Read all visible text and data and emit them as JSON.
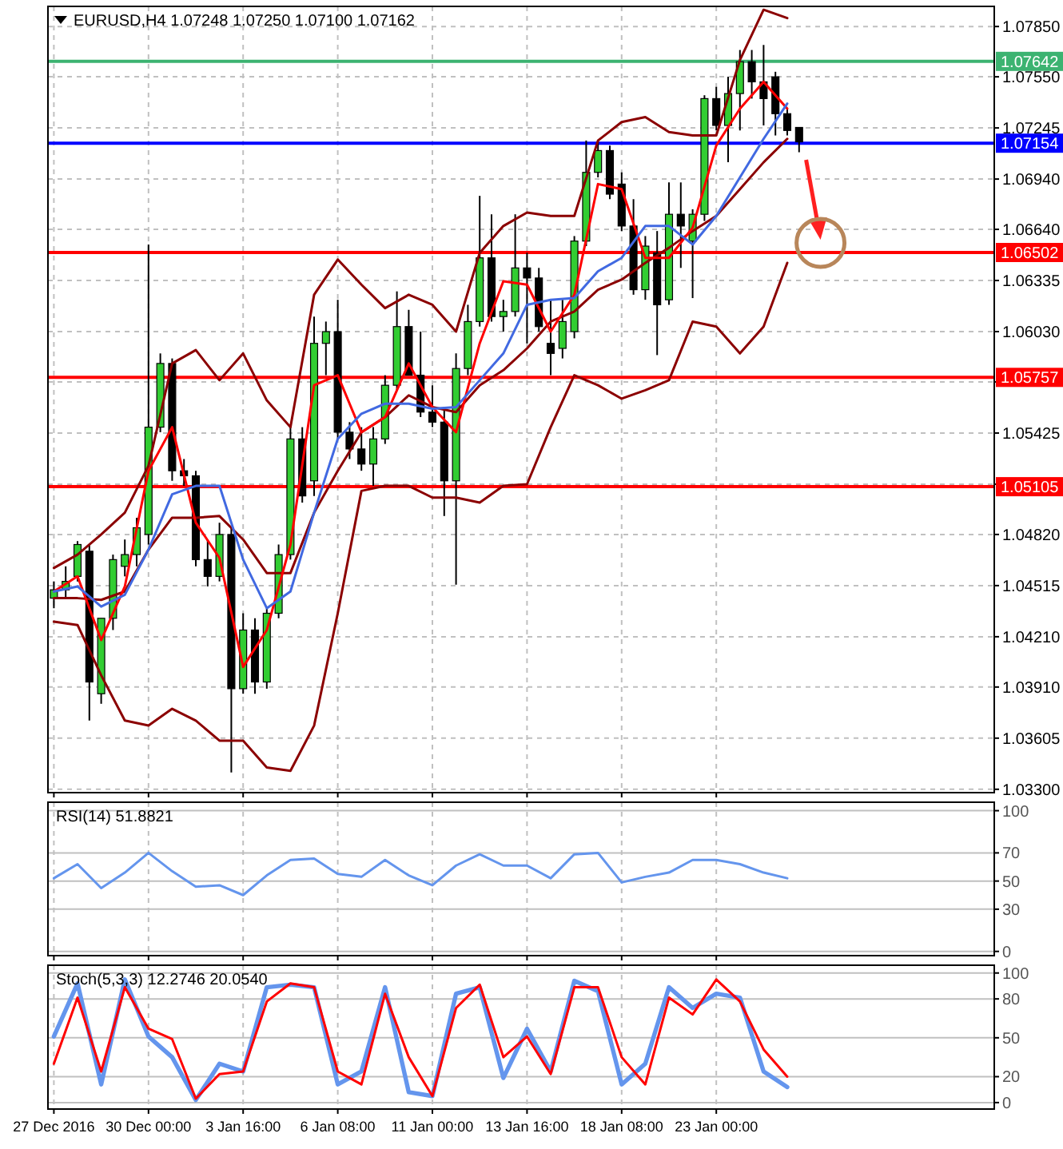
{
  "chart_data": [
    {
      "type": "candlestick",
      "title": "EURUSD,H4 1.07248 1.07250 1.07100 1.07162",
      "categories": [
        null,
        null,
        null,
        null,
        null,
        null,
        null,
        null,
        null,
        null,
        null,
        null,
        null,
        null,
        null,
        null,
        null,
        null,
        null,
        null,
        null,
        null,
        null,
        null,
        null,
        null,
        null,
        null,
        null,
        null,
        null,
        null,
        null,
        null,
        null,
        null,
        null,
        null,
        null,
        null,
        null,
        null,
        null,
        null,
        null,
        null,
        null,
        null,
        null,
        null,
        null,
        null,
        null,
        null,
        null,
        null,
        null,
        null,
        null,
        null,
        null,
        null,
        null,
        null,
        null,
        null,
        null,
        null,
        null,
        null,
        null,
        null,
        null,
        null,
        null,
        null,
        null,
        null,
        null,
        null
      ],
      "ohlc": [
        [
          1.0444,
          1.0454,
          1.0438,
          1.0449
        ],
        [
          1.0449,
          1.0463,
          1.0444,
          1.0454
        ],
        [
          1.0457,
          1.0478,
          1.0454,
          1.0476
        ],
        [
          1.0472,
          1.0476,
          1.0371,
          1.0394
        ],
        [
          1.0387,
          1.0432,
          1.0381,
          1.0432
        ],
        [
          1.0432,
          1.047,
          1.0425,
          1.0467
        ],
        [
          1.0463,
          1.0479,
          1.0457,
          1.047
        ],
        [
          1.047,
          1.0492,
          1.0463,
          1.0486
        ],
        [
          1.0482,
          1.0655,
          1.0476,
          1.0546
        ],
        [
          1.0546,
          1.059,
          1.0543,
          1.0584
        ],
        [
          1.0584,
          1.0587,
          1.0514,
          1.052
        ],
        [
          1.052,
          1.0527,
          1.0511,
          1.0517
        ],
        [
          1.0517,
          1.052,
          1.0463,
          1.0467
        ],
        [
          1.0467,
          1.0479,
          1.0451,
          1.0457
        ],
        [
          1.0457,
          1.0489,
          1.0454,
          1.0482
        ],
        [
          1.0482,
          1.0486,
          1.034,
          1.039
        ],
        [
          1.039,
          1.0435,
          1.0387,
          1.0425
        ],
        [
          1.0425,
          1.0432,
          1.0387,
          1.0394
        ],
        [
          1.0394,
          1.0438,
          1.039,
          1.0435
        ],
        [
          1.0435,
          1.0476,
          1.0432,
          1.047
        ],
        [
          1.047,
          1.0546,
          1.0467,
          1.0539
        ],
        [
          1.0539,
          1.0546,
          1.0501,
          1.0505
        ],
        [
          1.0514,
          1.0612,
          1.0505,
          1.0596
        ],
        [
          1.0596,
          1.0609,
          1.0577,
          1.0603
        ],
        [
          1.0603,
          1.0622,
          1.0539,
          1.0543
        ],
        [
          1.0543,
          1.0549,
          1.0527,
          1.0533
        ],
        [
          1.0533,
          1.0546,
          1.052,
          1.0524
        ],
        [
          1.0524,
          1.0546,
          1.0511,
          1.0539
        ],
        [
          1.0539,
          1.0577,
          1.0536,
          1.0571
        ],
        [
          1.0571,
          1.0627,
          1.0568,
          1.0606
        ],
        [
          1.0606,
          1.0616,
          1.0577,
          1.0577
        ],
        [
          1.0577,
          1.0603,
          1.0552,
          1.0555
        ],
        [
          1.0555,
          1.0571,
          1.0546,
          1.0549
        ],
        [
          1.0549,
          1.0558,
          1.0493,
          1.0514
        ],
        [
          1.0514,
          1.059,
          1.0452,
          1.0581
        ],
        [
          1.0581,
          1.0619,
          1.0577,
          1.0609
        ],
        [
          1.0609,
          1.0684,
          1.0606,
          1.0647
        ],
        [
          1.0647,
          1.0673,
          1.0609,
          1.0612
        ],
        [
          1.0612,
          1.0622,
          1.0603,
          1.0615
        ],
        [
          1.0615,
          1.0673,
          1.0612,
          1.0641
        ],
        [
          1.0641,
          1.065,
          1.0596,
          1.0635
        ],
        [
          1.0635,
          1.0641,
          1.0603,
          1.0606
        ],
        [
          1.0596,
          1.0622,
          1.0577,
          1.059
        ],
        [
          1.0593,
          1.0622,
          1.0587,
          1.0609
        ],
        [
          1.0603,
          1.066,
          1.0599,
          1.0657
        ],
        [
          1.0657,
          1.0717,
          1.0654,
          1.0698
        ],
        [
          1.0698,
          1.0717,
          1.0695,
          1.0711
        ],
        [
          1.0711,
          1.0714,
          1.0682,
          1.0685
        ],
        [
          1.0691,
          1.0698,
          1.0663,
          1.0666
        ],
        [
          1.0666,
          1.0682,
          1.0625,
          1.0628
        ],
        [
          1.0628,
          1.066,
          1.0622,
          1.0654
        ],
        [
          1.065,
          1.0663,
          1.0589,
          1.0619
        ],
        [
          1.0622,
          1.0692,
          1.0619,
          1.0673
        ],
        [
          1.0673,
          1.0692,
          1.0641,
          1.0666
        ],
        [
          1.0657,
          1.0676,
          1.0623,
          1.0673
        ],
        [
          1.0673,
          1.0744,
          1.0669,
          1.0742
        ],
        [
          1.0742,
          1.0749,
          1.0723,
          1.0726
        ],
        [
          1.0726,
          1.0755,
          1.0704,
          1.0745
        ],
        [
          1.0745,
          1.0771,
          1.0723,
          1.0764
        ],
        [
          1.0764,
          1.0771,
          1.0742,
          1.0752
        ],
        [
          1.0752,
          1.0774,
          1.0726,
          1.0742
        ],
        [
          1.0755,
          1.0758,
          1.072,
          1.0733
        ],
        [
          1.0733,
          1.0736,
          1.072,
          1.0723
        ],
        [
          1.07248,
          1.0725,
          1.071,
          1.07162
        ],
        null,
        null,
        null,
        null,
        null,
        null,
        null,
        null,
        null,
        null,
        null,
        null,
        null,
        null,
        null,
        null
      ],
      "series": [
        {
          "type": "line",
          "color": "#8b0000",
          "values": [
            1.0462,
            null,
            1.047,
            null,
            1.0482,
            null,
            1.0495,
            null,
            1.0523,
            null,
            1.0584,
            null,
            1.0592,
            null,
            1.0574,
            null,
            1.059,
            null,
            1.0562,
            null,
            1.0546,
            null,
            1.0625,
            null,
            1.0646,
            null,
            1.0631,
            null,
            1.0617,
            null,
            1.0625,
            null,
            1.0619,
            null,
            1.0603,
            null,
            1.065,
            null,
            1.0666,
            null,
            1.0674,
            null,
            1.0672,
            null,
            1.0672,
            null,
            1.0717,
            null,
            1.0728,
            null,
            1.0731,
            null,
            1.0722,
            null,
            1.072,
            null,
            1.072,
            null,
            1.0765,
            null,
            1.0795,
            null,
            1.079,
            null,
            null,
            null,
            null,
            null,
            null,
            null,
            null,
            null,
            null,
            null,
            null,
            null,
            null,
            null,
            null,
            null
          ]
        },
        {
          "type": "line",
          "color": "#8b0000",
          "values": [
            1.0444,
            null,
            1.0444,
            null,
            1.0443,
            null,
            1.0448,
            null,
            1.0473,
            null,
            1.0492,
            null,
            1.0492,
            null,
            1.0493,
            null,
            1.0479,
            null,
            1.0459,
            null,
            1.0459,
            null,
            1.0495,
            null,
            1.052,
            null,
            1.0543,
            null,
            1.0552,
            null,
            1.0565,
            null,
            1.0558,
            null,
            1.0555,
            null,
            1.0571,
            null,
            1.058,
            null,
            1.0593,
            null,
            1.0609,
            null,
            1.0615,
            null,
            1.0628,
            null,
            1.0634,
            null,
            1.0644,
            null,
            1.0653,
            null,
            1.0663,
            null,
            1.0672,
            null,
            1.0688,
            null,
            1.0704,
            null,
            1.0718,
            null,
            null,
            null,
            null,
            null,
            null,
            null,
            null,
            null,
            null,
            null,
            null,
            null,
            null,
            null,
            null,
            null
          ]
        },
        {
          "type": "line",
          "color": "#8b0000",
          "values": [
            1.043,
            null,
            1.0428,
            null,
            1.0398,
            null,
            1.0371,
            null,
            1.0368,
            null,
            1.0378,
            null,
            1.0371,
            null,
            1.0359,
            null,
            1.0359,
            null,
            1.0343,
            null,
            1.0341,
            null,
            1.0368,
            null,
            1.0435,
            null,
            1.0508,
            null,
            1.0511,
            null,
            1.0511,
            null,
            1.0504,
            null,
            1.0504,
            null,
            1.0501,
            null,
            1.0511,
            null,
            1.0512,
            null,
            1.0546,
            null,
            1.0577,
            null,
            1.0571,
            null,
            1.0563,
            null,
            1.0568,
            null,
            1.0574,
            null,
            1.0609,
            null,
            1.0606,
            null,
            1.059,
            null,
            1.0606,
            null,
            1.0644,
            null,
            null,
            null,
            null,
            null,
            null,
            null,
            null,
            null,
            null,
            null,
            null,
            null,
            null,
            null,
            null,
            null
          ]
        },
        {
          "type": "line",
          "color": "#ff0000",
          "values": [
            1.0448,
            null,
            1.0457,
            null,
            1.0419,
            null,
            1.0451,
            null,
            1.052,
            null,
            1.0546,
            null,
            1.0489,
            null,
            1.0468,
            null,
            1.0403,
            null,
            1.0425,
            null,
            1.0476,
            null,
            1.0571,
            null,
            1.0577,
            null,
            1.0543,
            null,
            1.0552,
            null,
            1.0584,
            null,
            1.0558,
            null,
            1.0543,
            null,
            1.0596,
            null,
            1.0633,
            null,
            1.0631,
            null,
            1.0603,
            null,
            1.0625,
            null,
            1.0691,
            null,
            1.0688,
            null,
            1.0647,
            null,
            1.0647,
            null,
            1.0665,
            null,
            1.0714,
            null,
            1.0736,
            null,
            1.0752,
            null,
            1.0736,
            null,
            null,
            null,
            null,
            null,
            null,
            null,
            null,
            null,
            null,
            null,
            null,
            null,
            null,
            null,
            null,
            null
          ]
        },
        {
          "type": "line",
          "color": "#4169e1",
          "values": [
            1.0448,
            null,
            1.0451,
            null,
            1.0439,
            null,
            1.0446,
            null,
            1.0473,
            null,
            1.0506,
            null,
            1.0511,
            null,
            1.0511,
            null,
            1.0467,
            null,
            1.0438,
            null,
            1.0448,
            null,
            1.0495,
            null,
            1.0539,
            null,
            1.0554,
            null,
            1.056,
            null,
            1.056,
            null,
            1.0557,
            null,
            1.0558,
            null,
            1.0574,
            null,
            1.059,
            null,
            1.0619,
            null,
            1.0622,
            null,
            1.0623,
            null,
            1.0639,
            null,
            1.0647,
            null,
            1.0666,
            null,
            1.0666,
            null,
            1.0655,
            null,
            1.0672,
            null,
            1.0695,
            null,
            1.0718,
            null,
            1.0739,
            null,
            null,
            null,
            null,
            null,
            null,
            null,
            null,
            null,
            null,
            null,
            null,
            null,
            null,
            null,
            null,
            null
          ]
        }
      ],
      "ylim": [
        1.0328,
        1.0797
      ],
      "yticks": [
        {
          "value": 1.033,
          "label": "1.03300"
        },
        {
          "value": 1.03605,
          "label": "1.03605"
        },
        {
          "value": 1.0391,
          "label": "1.03910"
        },
        {
          "value": 1.0421,
          "label": "1.04210"
        },
        {
          "value": 1.04515,
          "label": "1.04515"
        },
        {
          "value": 1.0482,
          "label": "1.04820"
        },
        {
          "value": 1.0512,
          "label": null
        },
        {
          "value": 1.05425,
          "label": "1.05425"
        },
        {
          "value": 1.0573,
          "label": null
        },
        {
          "value": 1.0603,
          "label": "1.06030"
        },
        {
          "value": 1.06335,
          "label": "1.06335"
        },
        {
          "value": 1.0664,
          "label": "1.06640"
        },
        {
          "value": 1.0694,
          "label": "1.06940"
        },
        {
          "value": 1.07245,
          "label": "1.07245"
        },
        {
          "value": 1.0755,
          "label": "1.07550"
        },
        {
          "value": 1.0785,
          "label": "1.07850"
        }
      ],
      "grid": true,
      "tick_labels": "y",
      "ref_lines": [
        {
          "axis": "y",
          "value": 1.07642,
          "label": "1.07642",
          "color": "#3cb371"
        },
        {
          "axis": "y",
          "value": 1.07154,
          "label": "1.07154",
          "color": "#0000ff"
        },
        {
          "axis": "y",
          "value": 1.06502,
          "label": "1.06502",
          "color": "#ff0000"
        },
        {
          "axis": "y",
          "value": 1.05757,
          "label": "1.05757",
          "color": "#ff0000"
        },
        {
          "axis": "y",
          "value": 1.05105,
          "label": "1.05105",
          "color": "#ff0000"
        }
      ]
    },
    {
      "type": "line",
      "title": "RSI(14) 51.8821",
      "categories": [
        null,
        null,
        null,
        null,
        null,
        null,
        null,
        null,
        null,
        null,
        null,
        null,
        null,
        null,
        null,
        null,
        null,
        null,
        null,
        null,
        null,
        null,
        null,
        null,
        null,
        null,
        null,
        null,
        null,
        null,
        null,
        null,
        null,
        null,
        null,
        null,
        null,
        null,
        null,
        null,
        null,
        null,
        null,
        null,
        null,
        null,
        null,
        null,
        null,
        null,
        null,
        null,
        null,
        null,
        null,
        null,
        null,
        null,
        null,
        null,
        null,
        null,
        null,
        null,
        null,
        null,
        null,
        null,
        null,
        null,
        null,
        null,
        null,
        null,
        null,
        null,
        null,
        null,
        null,
        null
      ],
      "series": [
        {
          "color": "#6495ed",
          "values": [
            52,
            null,
            62,
            null,
            45,
            null,
            56,
            null,
            70,
            null,
            57,
            null,
            46,
            null,
            47,
            null,
            40,
            null,
            54,
            null,
            65,
            null,
            66,
            null,
            55,
            null,
            53,
            null,
            65,
            null,
            54,
            null,
            47,
            null,
            61,
            null,
            69,
            null,
            61,
            null,
            61,
            null,
            52,
            null,
            69,
            null,
            70,
            null,
            49,
            null,
            53,
            null,
            56,
            null,
            65,
            null,
            65,
            null,
            62,
            null,
            56,
            null,
            52,
            null,
            null,
            null,
            null,
            null,
            null,
            null,
            null,
            null,
            null,
            null,
            null,
            null,
            null,
            null,
            null,
            null
          ]
        }
      ],
      "ylim": [
        -3,
        106
      ],
      "yticks": [
        0,
        30,
        50,
        70,
        100
      ],
      "grid": true,
      "tick_labels": "y"
    },
    {
      "type": "line",
      "title": "Stoch(5,3,3) 12.2746 20.0540",
      "categories": [
        "27 Dec 2016",
        null,
        null,
        null,
        null,
        null,
        null,
        null,
        "30 Dec 00:00",
        null,
        null,
        null,
        null,
        null,
        null,
        null,
        "3 Jan 16:00",
        null,
        null,
        null,
        null,
        null,
        null,
        null,
        "6 Jan 08:00",
        null,
        null,
        null,
        null,
        null,
        null,
        null,
        "11 Jan 00:00",
        null,
        null,
        null,
        null,
        null,
        null,
        null,
        "13 Jan 16:00",
        null,
        null,
        null,
        null,
        null,
        null,
        null,
        "18 Jan 08:00",
        null,
        null,
        null,
        null,
        null,
        null,
        null,
        "23 Jan 00:00",
        null,
        null,
        null,
        null,
        null,
        null,
        null,
        null,
        null,
        null,
        null,
        null,
        null,
        null,
        null,
        null,
        null,
        null,
        null,
        null,
        null,
        null,
        null
      ],
      "series": [
        {
          "color": "#6495ed",
          "values": [
            51,
            null,
            92,
            null,
            14,
            null,
            95,
            null,
            51,
            null,
            35,
            null,
            2,
            null,
            30,
            null,
            24,
            null,
            89,
            null,
            91,
            null,
            89,
            null,
            14,
            null,
            24,
            null,
            89,
            null,
            8,
            null,
            5,
            null,
            84,
            null,
            89,
            null,
            19,
            null,
            57,
            null,
            24,
            null,
            94,
            null,
            86,
            null,
            14,
            null,
            30,
            null,
            89,
            null,
            73,
            null,
            84,
            null,
            81,
            null,
            24,
            null,
            12,
            null,
            null,
            null,
            null,
            null,
            null,
            null,
            null,
            null,
            null,
            null,
            null,
            null,
            null,
            null,
            null,
            null
          ]
        },
        {
          "color": "#ff0000",
          "values": [
            30,
            null,
            81,
            null,
            24,
            null,
            89,
            null,
            57,
            null,
            49,
            null,
            3,
            null,
            22,
            null,
            24,
            null,
            78,
            null,
            92,
            null,
            89,
            null,
            24,
            null,
            14,
            null,
            84,
            null,
            35,
            null,
            5,
            null,
            73,
            null,
            91,
            null,
            35,
            null,
            51,
            null,
            22,
            null,
            89,
            null,
            89,
            null,
            35,
            null,
            14,
            null,
            81,
            null,
            68,
            null,
            95,
            null,
            78,
            null,
            41,
            null,
            20,
            null,
            null,
            null,
            null,
            null,
            null,
            null,
            null,
            null,
            null,
            null,
            null,
            null,
            null,
            null,
            null,
            null
          ]
        }
      ],
      "ylim": [
        -5,
        106
      ],
      "yticks": [
        0,
        20,
        50,
        80,
        100
      ],
      "grid": true
    }
  ]
}
